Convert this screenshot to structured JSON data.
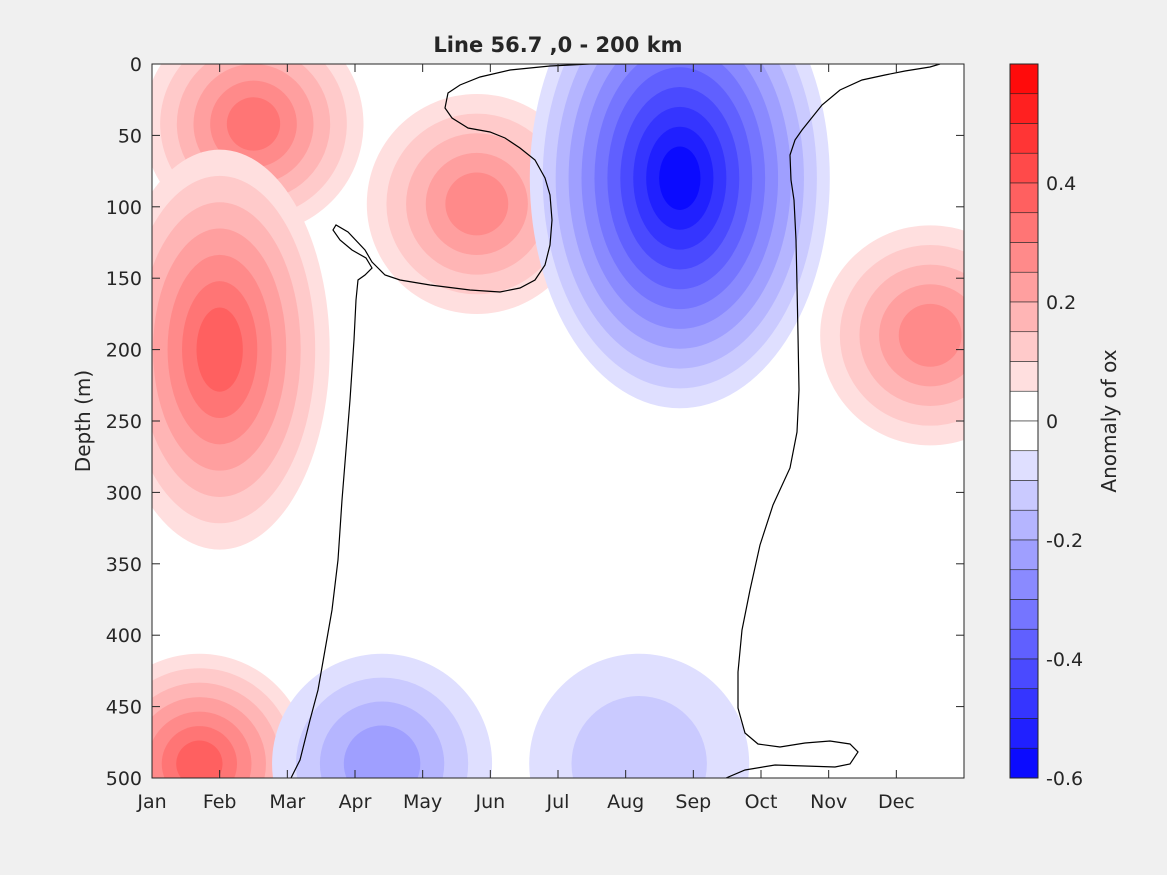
{
  "chart_data": {
    "type": "heatmap",
    "subtype": "filled-contour",
    "title": "Line 56.7 ,0 - 200 km",
    "xlabel": "",
    "ylabel": "Depth (m)",
    "colorbar_label": "Anomaly of ox",
    "x_ticks": [
      "Jan",
      "Feb",
      "Mar",
      "Apr",
      "May",
      "Jun",
      "Jul",
      "Aug",
      "Sep",
      "Oct",
      "Nov",
      "Dec"
    ],
    "y_ticks": [
      0,
      50,
      100,
      150,
      200,
      250,
      300,
      350,
      400,
      450,
      500
    ],
    "ylim": [
      0,
      500
    ],
    "y_reversed": true,
    "x_range_months": [
      0,
      12
    ],
    "colorbar_ticks": [
      0.4,
      0.2,
      0,
      -0.2,
      -0.4,
      -0.6
    ],
    "colorbar_range": [
      -0.6,
      0.6
    ],
    "colorbar_step": 0.05,
    "colormap": {
      "positive": "#ff0000",
      "zero": "#ffffff",
      "negative": "#0000ff"
    },
    "zero_contour_color": "#000000",
    "grid": false,
    "features": [
      {
        "name": "positive-core-shallow-winter",
        "month": 1.5,
        "depth": 42,
        "value": 0.35
      },
      {
        "name": "positive-core-may",
        "month": 4.8,
        "depth": 98,
        "value": 0.3
      },
      {
        "name": "positive-core-subsurface-winter",
        "month": 1.0,
        "depth": 200,
        "value": 0.37
      },
      {
        "name": "positive-core-deep-winter",
        "month": 0.7,
        "depth": 490,
        "value": 0.38
      },
      {
        "name": "negative-core-aug-sep",
        "month": 7.8,
        "depth": 80,
        "value": -0.56
      },
      {
        "name": "positive-core-dec",
        "month": 11.5,
        "depth": 190,
        "value": 0.26
      },
      {
        "name": "negative-core-deep-apr",
        "month": 3.4,
        "depth": 490,
        "value": -0.2
      },
      {
        "name": "negative-core-deep-aug",
        "month": 7.2,
        "depth": 490,
        "value": -0.12
      }
    ]
  }
}
